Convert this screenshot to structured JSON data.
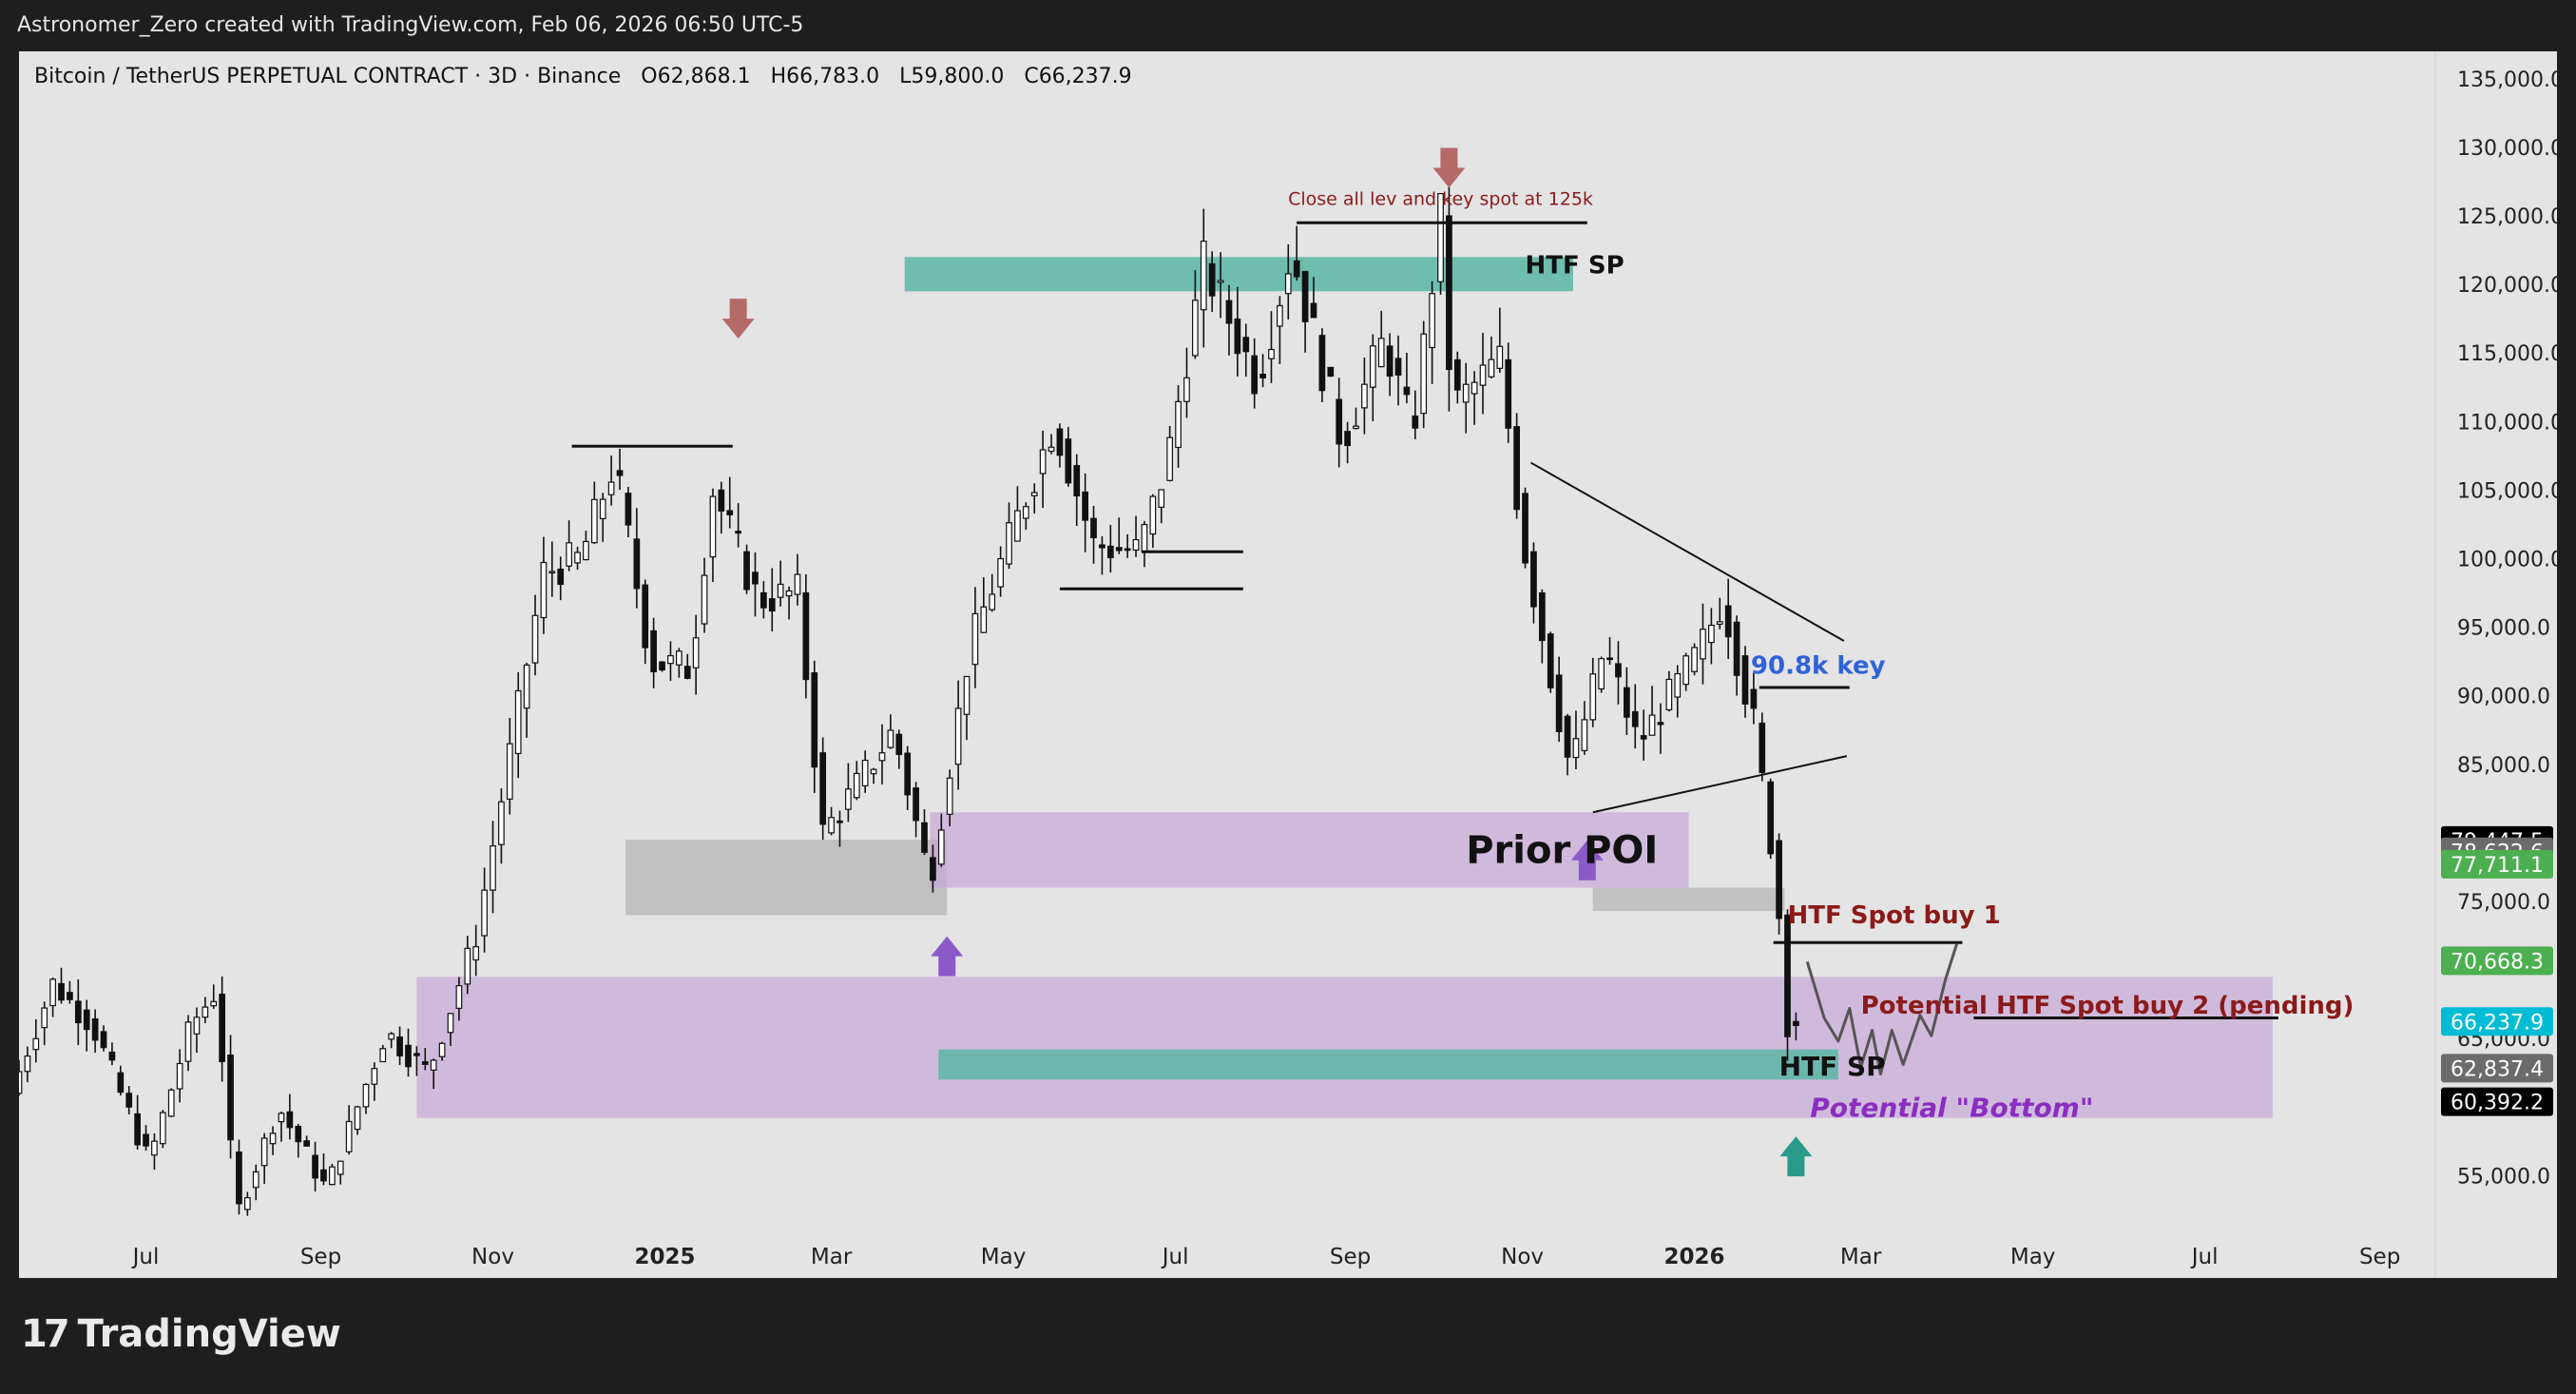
{
  "header": {
    "text": "Astronomer_Zero created with TradingView.com, Feb 06, 2026 06:50 UTC-5"
  },
  "symbol": {
    "name": "Bitcoin / TetherUS PERPETUAL CONTRACT · 3D · Binance",
    "open": "O62,868.1",
    "high": "H66,783.0",
    "low": "L59,800.0",
    "close": "C66,237.9"
  },
  "footer": {
    "logo_text": "TradingView",
    "logo_mark": "17"
  },
  "chart_data": {
    "type": "candlestick",
    "title": "Bitcoin / TetherUS PERPETUAL CONTRACT · 3D · Binance",
    "ylim": [
      51000,
      137000
    ],
    "y_ticks": [
      {
        "value": 135000,
        "label": "135,000.0"
      },
      {
        "value": 130000,
        "label": "130,000.0"
      },
      {
        "value": 125000,
        "label": "125,000.0"
      },
      {
        "value": 120000,
        "label": "120,000.0"
      },
      {
        "value": 115000,
        "label": "115,000.0"
      },
      {
        "value": 110000,
        "label": "110,000.0"
      },
      {
        "value": 105000,
        "label": "105,000.0"
      },
      {
        "value": 100000,
        "label": "100,000.0"
      },
      {
        "value": 95000,
        "label": "95,000.0"
      },
      {
        "value": 90000,
        "label": "90,000.0"
      },
      {
        "value": 85000,
        "label": "85,000.0"
      },
      {
        "value": 75000,
        "label": "75,000.0"
      },
      {
        "value": 65000,
        "label": "65,000.0"
      },
      {
        "value": 55000,
        "label": "55,000.0"
      }
    ],
    "x_ticks": [
      {
        "date": "2024-07-01",
        "label": "Jul",
        "bold": false
      },
      {
        "date": "2024-09-01",
        "label": "Sep",
        "bold": false
      },
      {
        "date": "2024-11-01",
        "label": "Nov",
        "bold": false
      },
      {
        "date": "2025-01-01",
        "label": "2025",
        "bold": true
      },
      {
        "date": "2025-03-01",
        "label": "Mar",
        "bold": false
      },
      {
        "date": "2025-05-01",
        "label": "May",
        "bold": false
      },
      {
        "date": "2025-07-01",
        "label": "Jul",
        "bold": false
      },
      {
        "date": "2025-09-01",
        "label": "Sep",
        "bold": false
      },
      {
        "date": "2025-11-01",
        "label": "Nov",
        "bold": false
      },
      {
        "date": "2026-01-01",
        "label": "2026",
        "bold": true
      },
      {
        "date": "2026-03-01",
        "label": "Mar",
        "bold": false
      },
      {
        "date": "2026-05-01",
        "label": "May",
        "bold": false
      },
      {
        "date": "2026-07-01",
        "label": "Jul",
        "bold": false
      },
      {
        "date": "2026-09-01",
        "label": "Sep",
        "bold": false
      }
    ],
    "x_range": [
      "2024-05-17",
      "2026-09-20"
    ],
    "price_path": [
      [
        "2024-05-17",
        61000
      ],
      [
        "2024-06-01",
        69000
      ],
      [
        "2024-06-15",
        66000
      ],
      [
        "2024-07-05",
        56000
      ],
      [
        "2024-07-20",
        66000
      ],
      [
        "2024-07-29",
        68500
      ],
      [
        "2024-08-05",
        52000
      ],
      [
        "2024-08-20",
        60000
      ],
      [
        "2024-09-06",
        54000
      ],
      [
        "2024-09-27",
        65500
      ],
      [
        "2024-10-12",
        62500
      ],
      [
        "2024-10-29",
        72500
      ],
      [
        "2024-11-12",
        88000
      ],
      [
        "2024-11-22",
        99000
      ],
      [
        "2024-12-05",
        100000
      ],
      [
        "2024-12-17",
        107000
      ],
      [
        "2024-12-30",
        92500
      ],
      [
        "2025-01-13",
        92000
      ],
      [
        "2025-01-21",
        105000
      ],
      [
        "2025-02-06",
        97000
      ],
      [
        "2025-02-20",
        97500
      ],
      [
        "2025-03-01",
        80000
      ],
      [
        "2025-03-15",
        84000
      ],
      [
        "2025-03-26",
        87500
      ],
      [
        "2025-04-08",
        76500
      ],
      [
        "2025-04-22",
        93500
      ],
      [
        "2025-05-10",
        103500
      ],
      [
        "2025-05-22",
        110000
      ],
      [
        "2025-06-05",
        101000
      ],
      [
        "2025-06-21",
        100500
      ],
      [
        "2025-07-01",
        107000
      ],
      [
        "2025-07-14",
        121500
      ],
      [
        "2025-08-02",
        113000
      ],
      [
        "2025-08-14",
        122500
      ],
      [
        "2025-09-01",
        108500
      ],
      [
        "2025-09-16",
        116000
      ],
      [
        "2025-09-26",
        109000
      ],
      [
        "2025-10-06",
        125000
      ],
      [
        "2025-10-10",
        111000
      ],
      [
        "2025-10-27",
        114500
      ],
      [
        "2025-11-04",
        101500
      ],
      [
        "2025-11-21",
        84500
      ],
      [
        "2025-12-03",
        93500
      ],
      [
        "2025-12-15",
        86500
      ],
      [
        "2026-01-05",
        93000
      ],
      [
        "2026-01-14",
        97000
      ],
      [
        "2026-01-25",
        88000
      ],
      [
        "2026-02-01",
        78000
      ],
      [
        "2026-02-04",
        72000
      ],
      [
        "2026-02-05",
        62800
      ],
      [
        "2026-02-06",
        66237
      ]
    ],
    "zones": [
      {
        "from": "2024-10-05",
        "to": "2026-07-25",
        "low": 59200,
        "high": 69500,
        "color": "#c8a8d8",
        "opacity": 0.7
      },
      {
        "from": "2024-12-18",
        "to": "2025-04-11",
        "low": 74000,
        "high": 79500,
        "color": "#b8b8b8",
        "opacity": 0.8
      },
      {
        "from": "2025-04-05",
        "to": "2025-12-30",
        "low": 76000,
        "high": 81500,
        "color": "#c8a8d8",
        "opacity": 0.7
      },
      {
        "from": "2025-11-26",
        "to": "2026-02-02",
        "low": 74300,
        "high": 76000,
        "color": "#b8b8b8",
        "opacity": 0.8
      },
      {
        "from": "2025-04-08",
        "to": "2026-02-21",
        "low": 62000,
        "high": 64200,
        "color": "#5ab6a4",
        "opacity": 0.85
      },
      {
        "from": "2025-03-27",
        "to": "2025-11-19",
        "low": 119500,
        "high": 122000,
        "color": "#5ab6a4",
        "opacity": 0.85
      }
    ],
    "levels": [
      {
        "from": "2024-11-29",
        "to": "2025-01-25",
        "value": 108200
      },
      {
        "from": "2025-06-19",
        "to": "2025-07-25",
        "value": 100500
      },
      {
        "from": "2025-05-21",
        "to": "2025-07-25",
        "value": 97800
      },
      {
        "from": "2025-08-13",
        "to": "2025-11-24",
        "value": 124500
      },
      {
        "from": "2026-01-24",
        "to": "2026-02-25",
        "value": 90600
      },
      {
        "from": "2026-01-29",
        "to": "2026-04-06",
        "value": 72000
      },
      {
        "from": "2026-04-10",
        "to": "2026-07-27",
        "value": 66500
      }
    ],
    "trendlines": [
      {
        "from": [
          "2025-11-04",
          107000
        ],
        "to": [
          "2026-02-23",
          94000
        ]
      },
      {
        "from": [
          "2025-11-26",
          81500
        ],
        "to": [
          "2026-02-24",
          85600
        ]
      }
    ],
    "arrows": [
      {
        "date": "2025-01-27",
        "price": 117500,
        "direction": "down",
        "color": "#b56a6a"
      },
      {
        "date": "2025-10-06",
        "price": 128500,
        "direction": "down",
        "color": "#b56a6a"
      },
      {
        "date": "2025-04-11",
        "price": 71000,
        "direction": "up",
        "color": "#8a5ac8"
      },
      {
        "date": "2025-11-24",
        "price": 78000,
        "direction": "up",
        "color": "#8a5ac8"
      },
      {
        "date": "2026-02-06",
        "price": 56400,
        "direction": "up",
        "color": "#2a9a8a"
      }
    ],
    "annotations": [
      {
        "text": "Close all lev and key spot at 125k",
        "date": "2025-10-03",
        "price": 125800,
        "color": "#8b1a1a",
        "size": 19,
        "weight": "normal",
        "anchor": "middle"
      },
      {
        "text": "HTF SP",
        "date": "2025-11-02",
        "price": 120800,
        "color": "#111111",
        "size": 26,
        "weight": "bold",
        "anchor": "start"
      },
      {
        "text": "Prior POI",
        "date": "2025-10-12",
        "price": 77800,
        "color": "#111111",
        "size": 40,
        "weight": "bold",
        "anchor": "start"
      },
      {
        "text": "90.8k key",
        "date": "2026-01-21",
        "price": 91600,
        "color": "#2f63d8",
        "size": 26,
        "weight": "bold",
        "anchor": "start"
      },
      {
        "text": "HTF Spot buy 1",
        "date": "2026-02-03",
        "price": 73400,
        "color": "#8b1a1a",
        "size": 26,
        "weight": "bold",
        "anchor": "start"
      },
      {
        "text": "Potential HTF Spot buy 2 (pending)",
        "date": "2026-03-01",
        "price": 66800,
        "color": "#8b1a1a",
        "size": 26,
        "weight": "bold",
        "anchor": "start"
      },
      {
        "text": "HTF SP",
        "date": "2026-01-31",
        "price": 62300,
        "color": "#111111",
        "size": 28,
        "weight": "bold",
        "anchor": "start"
      },
      {
        "text": "Potential \"Bottom\"",
        "date": "2026-02-11",
        "price": 59300,
        "color": "#8a2ec0",
        "size": 28,
        "weight": "bold",
        "anchor": "start",
        "italic": true
      }
    ],
    "projection": [
      [
        "2026-02-10",
        70600
      ],
      [
        "2026-02-16",
        66500
      ],
      [
        "2026-02-21",
        64800
      ],
      [
        "2026-02-25",
        67200
      ],
      [
        "2026-03-01",
        62900
      ],
      [
        "2026-03-05",
        65600
      ],
      [
        "2026-03-08",
        62400
      ],
      [
        "2026-03-12",
        65600
      ],
      [
        "2026-03-16",
        63100
      ],
      [
        "2026-03-22",
        66700
      ],
      [
        "2026-03-26",
        65200
      ],
      [
        "2026-03-31",
        69300
      ],
      [
        "2026-04-04",
        71900
      ]
    ],
    "price_labels": [
      {
        "value": 79447.5,
        "label": "79,447.5",
        "bg": "#000000",
        "fg": "#ffffff"
      },
      {
        "value": 78622.6,
        "label": "78,622.6",
        "bg": "#6b6b6b",
        "fg": "#ffffff"
      },
      {
        "value": 77711.1,
        "label": "77,711.1",
        "bg": "#4caf50",
        "fg": "#ffffff"
      },
      {
        "value": 70668.3,
        "label": "70,668.3",
        "bg": "#4caf50",
        "fg": "#ffffff"
      },
      {
        "value": 66237.9,
        "label": "66,237.9",
        "bg": "#00bcd4",
        "fg": "#ffffff"
      },
      {
        "value": 62837.4,
        "label": "62,837.4",
        "bg": "#6b6b6b",
        "fg": "#ffffff"
      },
      {
        "value": 60392.2,
        "label": "60,392.2",
        "bg": "#000000",
        "fg": "#ffffff"
      }
    ],
    "colors": {
      "bg": "#e4e4e4",
      "up_body": "#ffffff",
      "down_body": "#111111",
      "wick": "#111111",
      "line": "#111111"
    },
    "grid": false
  }
}
